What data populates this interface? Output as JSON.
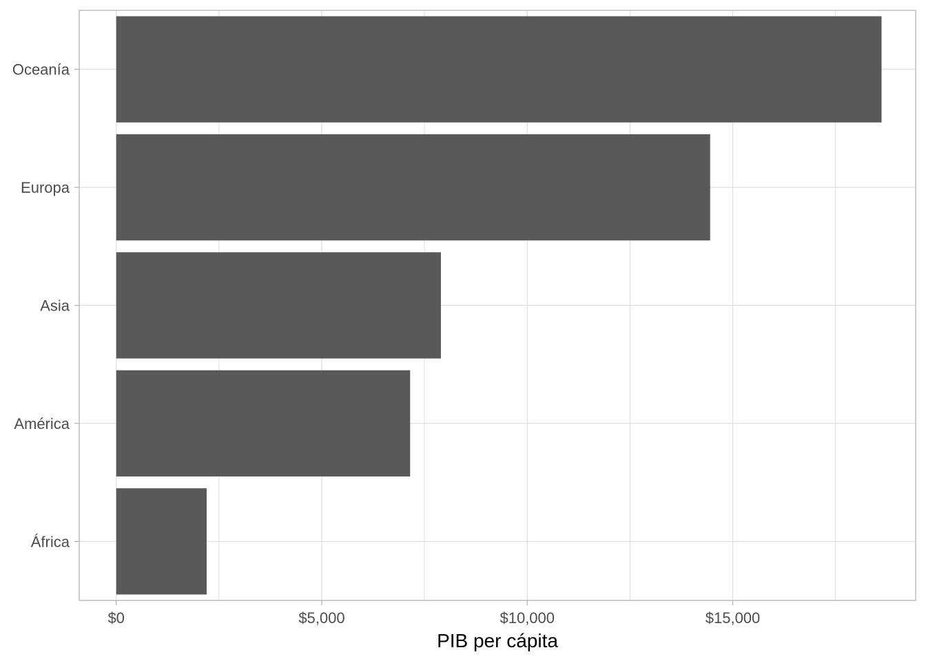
{
  "chart_data": {
    "type": "bar",
    "orientation": "horizontal",
    "categories": [
      "África",
      "América",
      "Asia",
      "Europa",
      "Oceanía"
    ],
    "values": [
      2200,
      7150,
      7900,
      14450,
      18620
    ],
    "xlabel": "PIB per cápita",
    "ylabel": "",
    "xlim": [
      -900,
      19450
    ],
    "x_ticks": [
      0,
      5000,
      10000,
      15000
    ],
    "x_tick_labels": [
      "$0",
      "$5,000",
      "$10,000",
      "$15,000"
    ],
    "grid": true,
    "colors": {
      "bar": "#595959",
      "grid": "#dedede",
      "panel_border": "#b3b3b3",
      "tick_text": "#4d4d4d"
    }
  }
}
